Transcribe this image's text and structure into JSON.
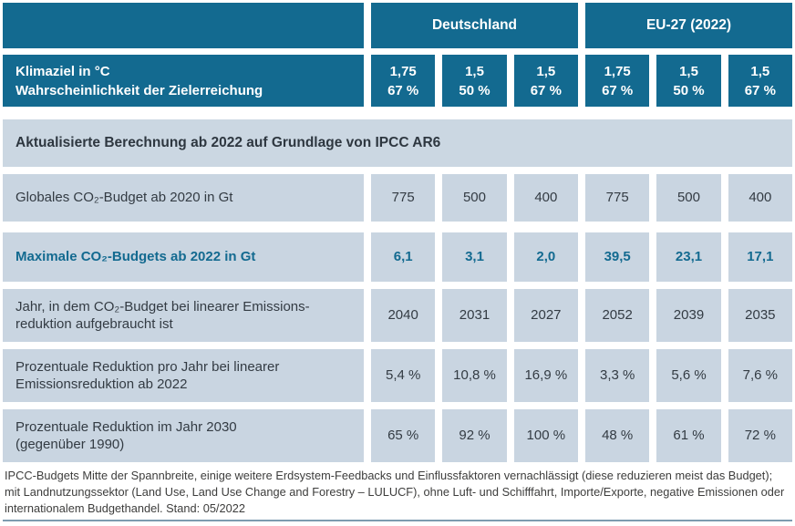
{
  "colors": {
    "header_teal": "#136a90",
    "cell_light_blue": "#c9d5e1",
    "section_band": "#cbd7e2",
    "dark_text": "#333b43",
    "accent_text": "#136a90",
    "bottom_rule": "#7d9cb0"
  },
  "table": {
    "column_groups": [
      {
        "label": "Deutschland",
        "span": 3
      },
      {
        "label": "EU-27 (2022)",
        "span": 3
      }
    ],
    "target_row": {
      "label": "Klimaziel in °C\nWahrscheinlichkeit der Zielerreichung",
      "values": [
        "1,75\n67 %",
        "1,5\n50 %",
        "1,5\n67 %",
        "1,75\n67 %",
        "1,5\n50 %",
        "1,5\n67 %"
      ]
    },
    "section_header": "Aktualisierte Berechnung ab 2022 auf Grundlage von IPCC AR6",
    "rows": [
      {
        "label": "Globales CO₂-Budget ab 2020 in Gt",
        "values": [
          "775",
          "500",
          "400",
          "775",
          "500",
          "400"
        ]
      },
      {
        "label": "Maximale CO₂-Budgets ab 2022 in Gt",
        "values": [
          "6,1",
          "3,1",
          "2,0",
          "39,5",
          "23,1",
          "17,1"
        ]
      },
      {
        "label": "Jahr, in dem CO₂-Budget bei linearer Emissions-\nreduktion aufgebraucht ist",
        "values": [
          "2040",
          "2031",
          "2027",
          "2052",
          "2039",
          "2035"
        ]
      },
      {
        "label": "Prozentuale Reduktion pro Jahr bei linearer\nEmissionsreduktion ab 2022",
        "values": [
          "5,4 %",
          "10,8 %",
          "16,9 %",
          "3,3 %",
          "5,6 %",
          "7,6 %"
        ]
      },
      {
        "label": "Prozentuale Reduktion im Jahr 2030\n(gegenüber 1990)",
        "values": [
          "65 %",
          "92 %",
          "100 %",
          "48 %",
          "61 %",
          "72 %"
        ]
      }
    ],
    "footnote": "IPCC-Budgets Mitte der Spannbreite, einige weitere Erdsystem-Feedbacks und Einflussfaktoren vernachlässigt (diese reduzieren meist das Budget); mit Landnutzungssektor (Land Use, Land Use Change and Forestry – LULUCF), ohne Luft- und Schifffahrt, Importe/Exporte, negative Emissionen oder internationalem Budgethandel. Stand: 05/2022"
  },
  "chart_data": {
    "type": "table",
    "title": "Aktualisierte Berechnung ab 2022 auf Grundlage von IPCC AR6",
    "column_groups": [
      "Deutschland",
      "EU-27 (2022)"
    ],
    "climate_target_celsius": [
      1.75,
      1.5,
      1.5,
      1.75,
      1.5,
      1.5
    ],
    "target_probability_percent": [
      67,
      50,
      67,
      67,
      50,
      67
    ],
    "rows": [
      {
        "label": "Globales CO₂-Budget ab 2020 in Gt",
        "values": [
          775,
          500,
          400,
          775,
          500,
          400
        ]
      },
      {
        "label": "Maximale CO₂-Budgets ab 2022 in Gt",
        "values": [
          6.1,
          3.1,
          2.0,
          39.5,
          23.1,
          17.1
        ]
      },
      {
        "label": "Jahr, in dem CO₂-Budget bei linearer Emissionsreduktion aufgebraucht ist",
        "values": [
          2040,
          2031,
          2027,
          2052,
          2039,
          2035
        ]
      },
      {
        "label": "Prozentuale Reduktion pro Jahr bei linearer Emissionsreduktion ab 2022 (%)",
        "values": [
          5.4,
          10.8,
          16.9,
          3.3,
          5.6,
          7.6
        ]
      },
      {
        "label": "Prozentuale Reduktion im Jahr 2030 gegenüber 1990 (%)",
        "values": [
          65,
          92,
          100,
          48,
          61,
          72
        ]
      }
    ],
    "footnote": "IPCC-Budgets Mitte der Spannbreite, einige weitere Erdsystem-Feedbacks und Einflussfaktoren vernachlässigt (diese reduzieren meist das Budget); mit Landnutzungssektor (Land Use, Land Use Change and Forestry – LULUCF), ohne Luft- und Schifffahrt, Importe/Exporte, negative Emissionen oder internationalem Budgethandel. Stand: 05/2022"
  }
}
